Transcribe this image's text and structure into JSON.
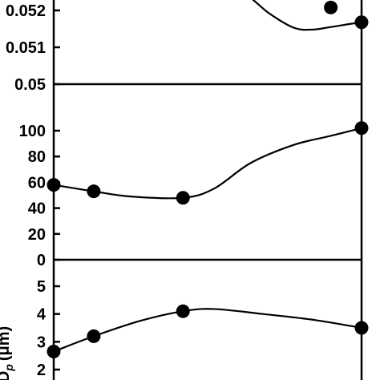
{
  "chart_data": [
    {
      "type": "line",
      "panel": "top",
      "ylabel": "",
      "ylim": [
        0.05,
        0.0525
      ],
      "ticks": [
        {
          "value": 0.052,
          "label": "0.052"
        },
        {
          "value": 0.051,
          "label": "0.051"
        },
        {
          "value": 0.05,
          "label": "0.05"
        }
      ],
      "series": [
        {
          "points": [
            {
              "x": 0.9,
              "y": 0.05208
            },
            {
              "x": 1.0,
              "y": 0.05168
            }
          ]
        }
      ],
      "curve": [
        {
          "x": 0.54,
          "y": 0.0526
        },
        {
          "x": 0.62,
          "y": 0.05245
        },
        {
          "x": 0.7,
          "y": 0.05192
        },
        {
          "x": 0.78,
          "y": 0.05153
        },
        {
          "x": 0.84,
          "y": 0.05148
        },
        {
          "x": 0.9,
          "y": 0.05155
        },
        {
          "x": 0.96,
          "y": 0.05163
        },
        {
          "x": 1.0,
          "y": 0.05168
        }
      ]
    },
    {
      "type": "line",
      "panel": "middle",
      "ylabel": "",
      "ylim": [
        0,
        115
      ],
      "ticks": [
        {
          "value": 100,
          "label": "100"
        },
        {
          "value": 80,
          "label": "80"
        },
        {
          "value": 60,
          "label": "60"
        },
        {
          "value": 40,
          "label": "40"
        },
        {
          "value": 20,
          "label": "20"
        },
        {
          "value": 0,
          "label": "0"
        }
      ],
      "series": [
        {
          "points": [
            {
              "x": 0.0,
              "y": 58
            },
            {
              "x": 0.13,
              "y": 53
            },
            {
              "x": 0.42,
              "y": 48
            },
            {
              "x": 1.0,
              "y": 102
            }
          ]
        }
      ],
      "curve": [
        {
          "x": 0.0,
          "y": 58
        },
        {
          "x": 0.13,
          "y": 53
        },
        {
          "x": 0.25,
          "y": 49
        },
        {
          "x": 0.42,
          "y": 48
        },
        {
          "x": 0.52,
          "y": 55
        },
        {
          "x": 0.64,
          "y": 75
        },
        {
          "x": 0.78,
          "y": 89
        },
        {
          "x": 0.9,
          "y": 96
        },
        {
          "x": 1.0,
          "y": 102
        }
      ]
    },
    {
      "type": "line",
      "panel": "bottom",
      "ylabel": "D",
      "ylabel_sub": "p",
      "ylabel_unit": "(μm)",
      "ylim": [
        1.7,
        5.4
      ],
      "ticks": [
        {
          "value": 5,
          "label": "5"
        },
        {
          "value": 4,
          "label": "4"
        },
        {
          "value": 3,
          "label": "3"
        },
        {
          "value": 2,
          "label": "2"
        }
      ],
      "series": [
        {
          "points": [
            {
              "x": 0.0,
              "y": 2.65
            },
            {
              "x": 0.13,
              "y": 3.2
            },
            {
              "x": 0.42,
              "y": 4.1
            },
            {
              "x": 1.0,
              "y": 3.5
            }
          ]
        }
      ],
      "curve": [
        {
          "x": 0.0,
          "y": 2.65
        },
        {
          "x": 0.13,
          "y": 3.2
        },
        {
          "x": 0.28,
          "y": 3.75
        },
        {
          "x": 0.42,
          "y": 4.1
        },
        {
          "x": 0.52,
          "y": 4.18
        },
        {
          "x": 0.68,
          "y": 4.0
        },
        {
          "x": 0.85,
          "y": 3.78
        },
        {
          "x": 1.0,
          "y": 3.5
        }
      ]
    }
  ]
}
